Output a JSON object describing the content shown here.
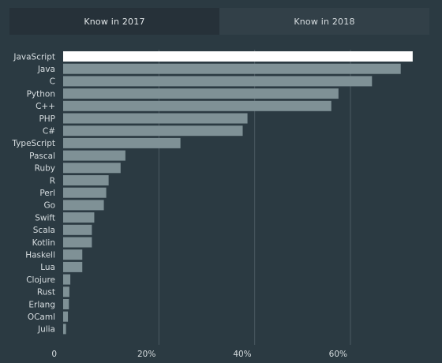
{
  "tabs": [
    {
      "label": "Know in 2017",
      "active": true
    },
    {
      "label": "Know in 2018",
      "active": false
    }
  ],
  "colors": {
    "background": "#2b3a42",
    "bar": "#7f9196",
    "bar_highlight": "#ffffff",
    "grid": "#4b5a62",
    "text": "#d7dde0"
  },
  "chart_data": {
    "type": "bar",
    "orientation": "horizontal",
    "categories": [
      "JavaScript",
      "Java",
      "C",
      "Python",
      "C++",
      "PHP",
      "C#",
      "TypeScript",
      "Pascal",
      "Ruby",
      "R",
      "Perl",
      "Go",
      "Swift",
      "Scala",
      "Kotlin",
      "Haskell",
      "Lua",
      "Clojure",
      "Rust",
      "Erlang",
      "OCaml",
      "Julia"
    ],
    "values": [
      73,
      70.5,
      64.5,
      57.5,
      56,
      38.5,
      37.5,
      24.5,
      13,
      12,
      9.5,
      9,
      8.5,
      6.5,
      6,
      6,
      4,
      4,
      1.5,
      1.3,
      1.2,
      1,
      0.6
    ],
    "highlight_index": 0,
    "xlim": [
      0,
      75
    ],
    "xticks": [
      {
        "value": 0,
        "label": "0"
      },
      {
        "value": 20,
        "label": "20%"
      },
      {
        "value": 40,
        "label": "40%"
      },
      {
        "value": 60,
        "label": "60%"
      }
    ],
    "grid": true
  }
}
